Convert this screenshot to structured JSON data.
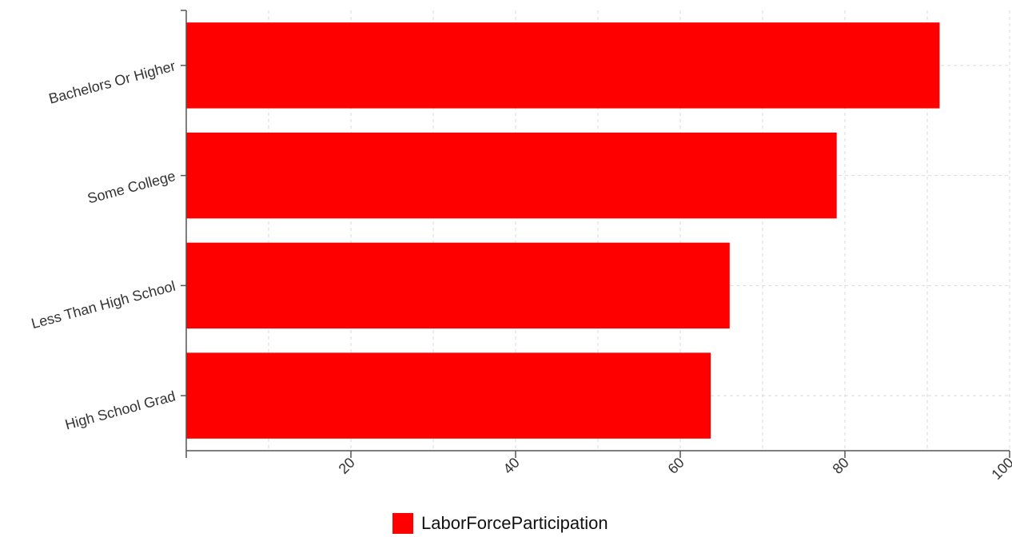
{
  "chart_data": {
    "type": "bar",
    "orientation": "horizontal",
    "categories": [
      "Bachelors Or Higher",
      "Some College",
      "Less Than High School",
      "High School Grad"
    ],
    "series": [
      {
        "name": "LaborForceParticipation",
        "values": [
          91.5,
          79.0,
          66.0,
          63.7
        ]
      }
    ],
    "xlim": [
      0,
      100
    ],
    "x_ticks": [
      20,
      40,
      60,
      80,
      100
    ],
    "xlabel": "",
    "ylabel": "",
    "grid": true,
    "legend_position": "bottom-center",
    "colors": {
      "bar": "#ff0000",
      "grid": "#d9d9d9",
      "axis": "#555555"
    }
  }
}
